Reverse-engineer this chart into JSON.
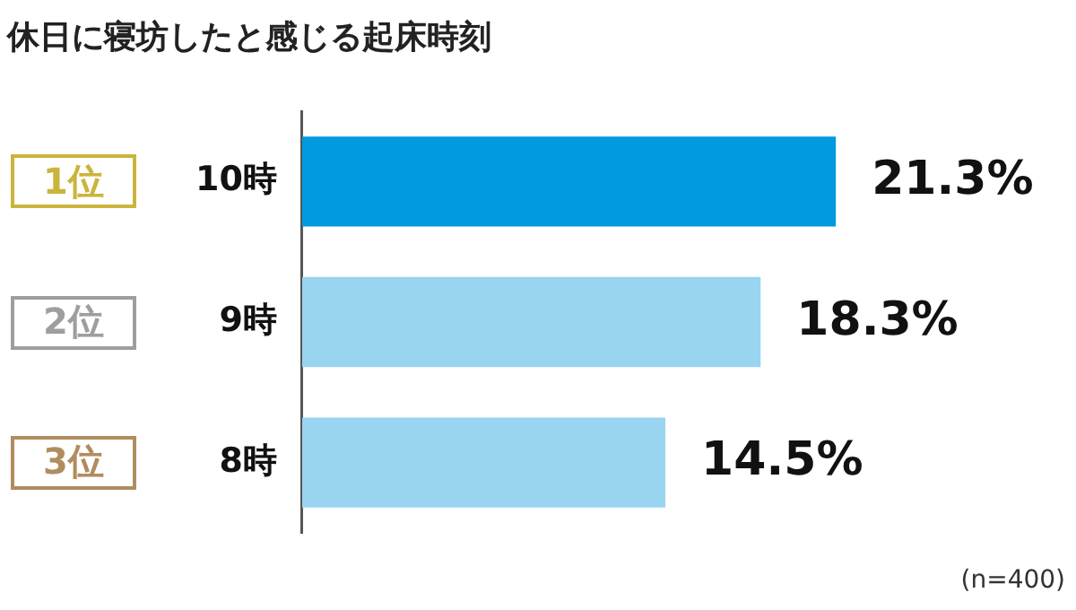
{
  "chart_data": {
    "type": "bar",
    "orientation": "horizontal",
    "title": "休日に寝坊したと感じる起床時刻",
    "categories": [
      "10時",
      "9時",
      "8時"
    ],
    "values": [
      21.3,
      18.3,
      14.5
    ],
    "colors": [
      "#009ade",
      "#99d5f0",
      "#99d5f0"
    ],
    "value_labels": [
      "21.3%",
      "18.3%",
      "14.5%"
    ],
    "annotations": [
      "1位",
      "2位",
      "3位",
      "(n=400)"
    ],
    "legend": false
  }
}
